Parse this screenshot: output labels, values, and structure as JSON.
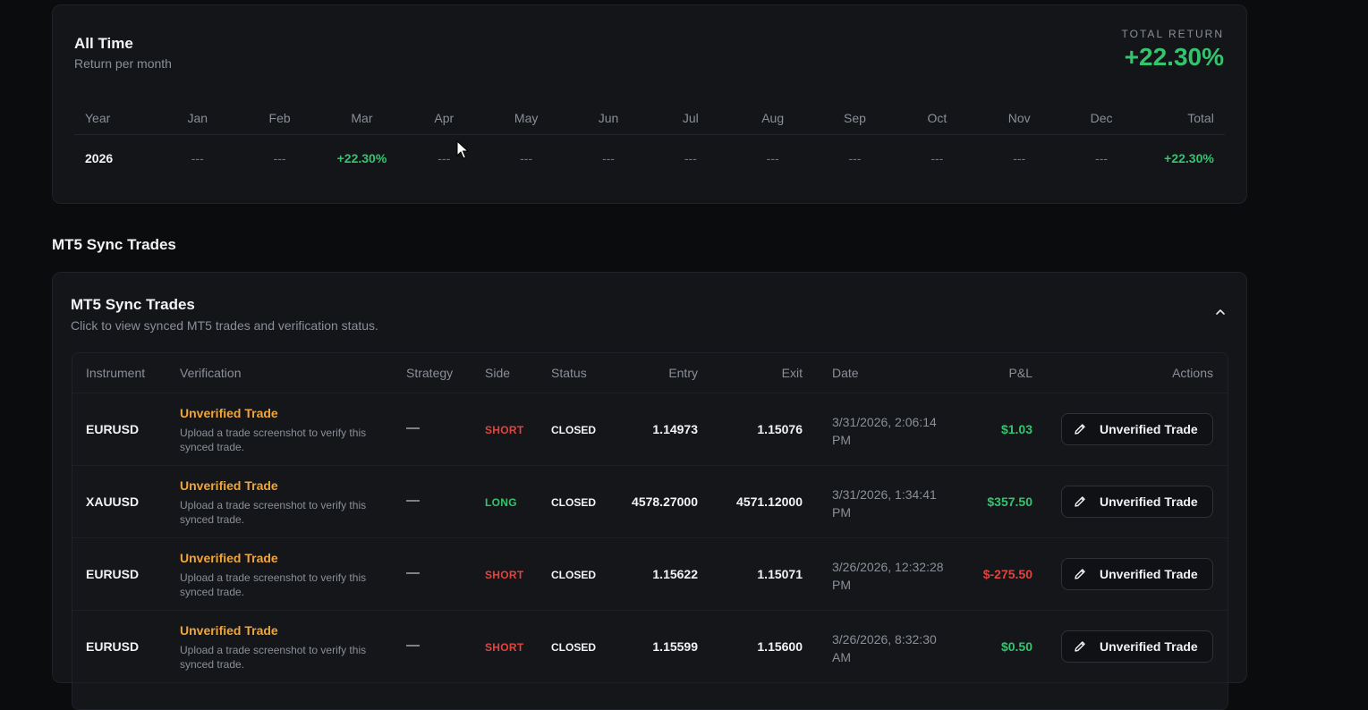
{
  "all_time": {
    "title": "All Time",
    "subtitle": "Return per month",
    "total_return_label": "TOTAL RETURN",
    "total_return_value": "+22.30%",
    "headers": [
      "Year",
      "Jan",
      "Feb",
      "Mar",
      "Apr",
      "May",
      "Jun",
      "Jul",
      "Aug",
      "Sep",
      "Oct",
      "Nov",
      "Dec",
      "Total"
    ],
    "rows": [
      {
        "year": "2026",
        "months": [
          "---",
          "---",
          "+22.30%",
          "---",
          "---",
          "---",
          "---",
          "---",
          "---",
          "---",
          "---",
          "---"
        ],
        "total": "+22.30%"
      }
    ]
  },
  "section_title": "MT5 Sync Trades",
  "trades_card": {
    "title": "MT5 Sync Trades",
    "subtitle": "Click to view synced MT5 trades and verification status.",
    "columns": {
      "instrument": "Instrument",
      "verification": "Verification",
      "strategy": "Strategy",
      "side": "Side",
      "status": "Status",
      "entry": "Entry",
      "exit": "Exit",
      "date": "Date",
      "pnl": "P&L",
      "actions": "Actions"
    },
    "rows": [
      {
        "instrument": "EURUSD",
        "verification_title": "Unverified Trade",
        "verification_desc": "Upload a trade screenshot to verify this synced trade.",
        "strategy": "—",
        "side": "SHORT",
        "status": "CLOSED",
        "entry": "1.14973",
        "exit": "1.15076",
        "date": "3/31/2026, 2:06:14 PM",
        "pnl": "$1.03",
        "action": "Unverified Trade"
      },
      {
        "instrument": "XAUUSD",
        "verification_title": "Unverified Trade",
        "verification_desc": "Upload a trade screenshot to verify this synced trade.",
        "strategy": "—",
        "side": "LONG",
        "status": "CLOSED",
        "entry": "4578.27000",
        "exit": "4571.12000",
        "date": "3/31/2026, 1:34:41 PM",
        "pnl": "$357.50",
        "action": "Unverified Trade"
      },
      {
        "instrument": "EURUSD",
        "verification_title": "Unverified Trade",
        "verification_desc": "Upload a trade screenshot to verify this synced trade.",
        "strategy": "—",
        "side": "SHORT",
        "status": "CLOSED",
        "entry": "1.15622",
        "exit": "1.15071",
        "date": "3/26/2026, 12:32:28 PM",
        "pnl": "$-275.50",
        "action": "Unverified Trade"
      },
      {
        "instrument": "EURUSD",
        "verification_title": "Unverified Trade",
        "verification_desc": "Upload a trade screenshot to verify this synced trade.",
        "strategy": "—",
        "side": "SHORT",
        "status": "CLOSED",
        "entry": "1.15599",
        "exit": "1.15600",
        "date": "3/26/2026, 8:32:30 AM",
        "pnl": "$0.50",
        "action": "Unverified Trade"
      }
    ]
  },
  "colors": {
    "positive": "#35c46e",
    "negative": "#e0443f",
    "warning": "#f0a53a"
  }
}
